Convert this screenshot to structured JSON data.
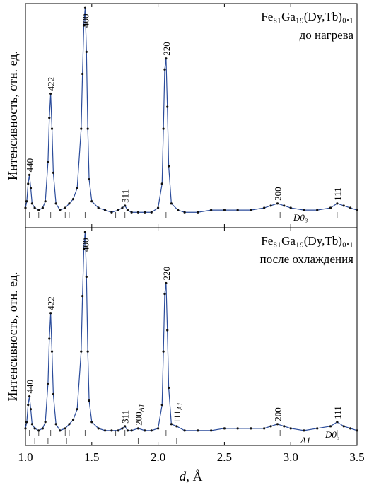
{
  "chart_data": [
    {
      "type": "line",
      "title": "Fe₈₁Ga₁₉(Dy,Tb)₀.₁",
      "subtitle": "до нагрева",
      "ylabel": "Интенсивность, отн. ед.",
      "xlim": [
        1.0,
        3.5
      ],
      "xticks": [
        {
          "value": 1.0,
          "label": "1.0"
        },
        1.5,
        {
          "value": 2.0,
          "label": "2.0"
        },
        2.5,
        {
          "value": 3.0,
          "label": "3.0"
        },
        3.5
      ],
      "ylim": [
        0,
        102
      ],
      "series": [
        {
          "color": "#2b4c9b",
          "x": [
            1.0,
            1.01,
            1.02,
            1.03,
            1.04,
            1.05,
            1.07,
            1.1,
            1.13,
            1.15,
            1.17,
            1.18,
            1.19,
            1.2,
            1.21,
            1.23,
            1.26,
            1.3,
            1.33,
            1.36,
            1.39,
            1.42,
            1.43,
            1.44,
            1.45,
            1.46,
            1.47,
            1.48,
            1.5,
            1.55,
            1.6,
            1.65,
            1.7,
            1.73,
            1.75,
            1.77,
            1.8,
            1.85,
            1.9,
            1.95,
            2.0,
            2.03,
            2.04,
            2.05,
            2.06,
            2.07,
            2.08,
            2.1,
            2.15,
            2.2,
            2.3,
            2.4,
            2.5,
            2.6,
            2.7,
            2.8,
            2.85,
            2.9,
            2.95,
            3.0,
            3.1,
            3.2,
            3.3,
            3.35,
            3.4,
            3.45,
            3.5
          ],
          "values": [
            9,
            12,
            20,
            24,
            18,
            11,
            9,
            8,
            9,
            12,
            30,
            50,
            61,
            45,
            25,
            11,
            8,
            9,
            11,
            13,
            18,
            45,
            70,
            92,
            100,
            80,
            45,
            22,
            12,
            9,
            8,
            7,
            8,
            9,
            10,
            8,
            7,
            7,
            7,
            7,
            9,
            20,
            45,
            72,
            77,
            55,
            28,
            11,
            8,
            7,
            7,
            8,
            8,
            8,
            8,
            9,
            10,
            11,
            10,
            9,
            8,
            8,
            9,
            11,
            10,
            9,
            8
          ]
        }
      ],
      "peaks": [
        {
          "label": "440",
          "d": 1.03
        },
        {
          "label": "422",
          "d": 1.19
        },
        {
          "label": "400",
          "d": 1.45
        },
        {
          "label": "311",
          "d": 1.75
        },
        {
          "label": "220",
          "d": 2.06
        },
        {
          "label": "200",
          "d": 2.9
        },
        {
          "label": "111",
          "d": 3.35
        }
      ],
      "references": [
        {
          "name": "D0₃",
          "positions": [
            1.03,
            1.1,
            1.19,
            1.3,
            1.33,
            1.45,
            1.68,
            1.75,
            2.06,
            2.92,
            3.35
          ]
        }
      ]
    },
    {
      "type": "line",
      "title": "Fe₈₁Ga₁₉(Dy,Tb)₀.₁",
      "subtitle": "после охлаждения",
      "ylabel": "Интенсивность, отн. ед.",
      "xlabel": {
        "var": "d",
        "unit": ", Å"
      },
      "xlim": [
        1.0,
        3.5
      ],
      "xticks": [
        {
          "value": 1.0,
          "label": "1.0"
        },
        1.5,
        {
          "value": 2.0,
          "label": "2.0"
        },
        2.5,
        {
          "value": 3.0,
          "label": "3.0"
        },
        3.5
      ],
      "ylim": [
        0,
        102
      ],
      "series": [
        {
          "color": "#2b4c9b",
          "x": [
            1.0,
            1.01,
            1.02,
            1.03,
            1.04,
            1.05,
            1.07,
            1.1,
            1.13,
            1.15,
            1.17,
            1.18,
            1.19,
            1.2,
            1.21,
            1.23,
            1.26,
            1.3,
            1.33,
            1.36,
            1.39,
            1.42,
            1.43,
            1.44,
            1.45,
            1.46,
            1.47,
            1.48,
            1.5,
            1.55,
            1.6,
            1.65,
            1.7,
            1.73,
            1.75,
            1.77,
            1.8,
            1.85,
            1.9,
            1.95,
            2.0,
            2.03,
            2.04,
            2.05,
            2.06,
            2.07,
            2.08,
            2.1,
            2.14,
            2.2,
            2.3,
            2.4,
            2.5,
            2.6,
            2.7,
            2.8,
            2.85,
            2.9,
            2.95,
            3.0,
            3.1,
            3.2,
            3.3,
            3.35,
            3.4,
            3.45,
            3.5
          ],
          "values": [
            8,
            11,
            19,
            23,
            17,
            10,
            8,
            7,
            8,
            11,
            29,
            50,
            62,
            44,
            24,
            10,
            7,
            8,
            10,
            12,
            17,
            44,
            70,
            92,
            100,
            79,
            44,
            21,
            11,
            8,
            7,
            7,
            7,
            8,
            9,
            7,
            7,
            8,
            7,
            7,
            8,
            19,
            44,
            71,
            76,
            54,
            27,
            10,
            9,
            7,
            7,
            7,
            8,
            8,
            8,
            8,
            9,
            10,
            9,
            8,
            7,
            8,
            9,
            11,
            9,
            8,
            7
          ]
        }
      ],
      "peaks": [
        {
          "label": "440",
          "d": 1.03
        },
        {
          "label": "422",
          "d": 1.19
        },
        {
          "label": "400",
          "d": 1.45
        },
        {
          "label": "311",
          "d": 1.75
        },
        {
          "label": "200",
          "sub": "A1",
          "d": 1.85
        },
        {
          "label": "220",
          "d": 2.06
        },
        {
          "label": "111",
          "sub": "A1",
          "d": 2.14
        },
        {
          "label": "200",
          "d": 2.9
        },
        {
          "label": "111",
          "d": 3.35
        }
      ],
      "references": [
        {
          "name": "D0₃",
          "positions": [
            1.03,
            1.1,
            1.19,
            1.3,
            1.33,
            1.45,
            1.68,
            1.75,
            2.06,
            2.92,
            3.35
          ]
        },
        {
          "name": "A1",
          "positions": [
            1.07,
            1.17,
            1.31,
            1.85,
            2.14
          ]
        }
      ]
    }
  ]
}
